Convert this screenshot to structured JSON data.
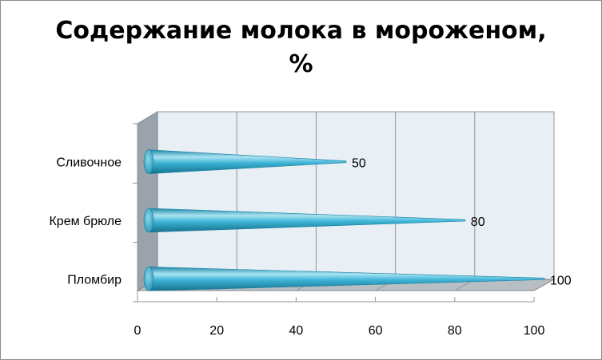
{
  "chart_data": {
    "type": "bar",
    "orientation": "horizontal",
    "style": "3d-cone",
    "title_lines": [
      "Содержание молока в мороженом,",
      "%"
    ],
    "categories": [
      "Сливочное",
      "Крем брюле",
      "Пломбир"
    ],
    "values": [
      50,
      80,
      100
    ],
    "data_labels": [
      "50",
      "80",
      "100"
    ],
    "xlim": [
      0,
      100
    ],
    "x_ticks": [
      0,
      20,
      40,
      60,
      80,
      100
    ],
    "x_tick_labels": [
      "0",
      "20",
      "40",
      "60",
      "80",
      "100"
    ],
    "grid": true,
    "legend": "none",
    "colors": {
      "bar": "#3db4d6",
      "bar_dark": "#1b7f9e",
      "bar_light": "#a9e3f2",
      "wall": "#e8f0f6",
      "side_wall": "#9aa3ab",
      "floor": "#b7bec4",
      "grid": "#8f9499"
    }
  }
}
